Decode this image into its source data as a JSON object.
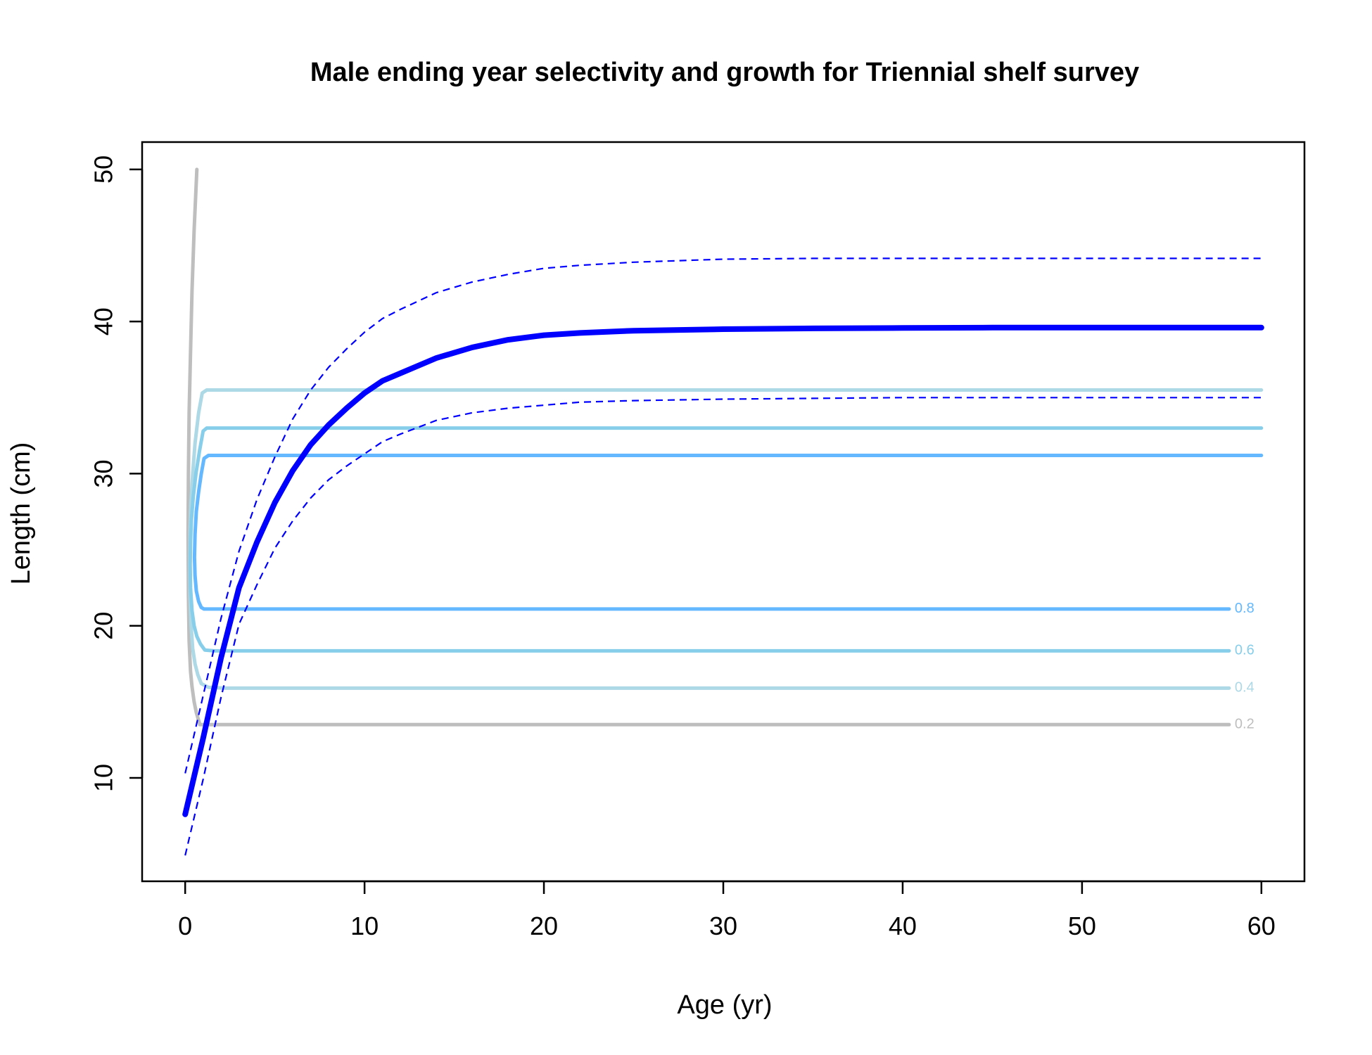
{
  "chart_data": {
    "type": "line",
    "title": "Male ending year selectivity and growth for Triennial shelf survey",
    "xlabel": "Age (yr)",
    "ylabel": "Length (cm)",
    "xlim": [
      -2.4,
      62.4
    ],
    "ylim": [
      3.2,
      51.8
    ],
    "xticks": [
      0,
      10,
      20,
      30,
      40,
      50,
      60
    ],
    "yticks": [
      10,
      20,
      30,
      40,
      50
    ],
    "grid": false,
    "growth": {
      "mean": {
        "color": "#0000ff",
        "x": [
          0,
          1,
          2,
          3,
          4,
          5,
          6,
          7,
          8,
          9,
          10,
          11,
          12,
          14,
          16,
          18,
          20,
          22,
          25,
          30,
          35,
          40,
          45,
          50,
          55,
          60
        ],
        "y": [
          7.6,
          12.6,
          17.9,
          22.5,
          25.5,
          28.1,
          30.2,
          31.9,
          33.2,
          34.3,
          35.3,
          36.1,
          36.6,
          37.6,
          38.3,
          38.8,
          39.1,
          39.25,
          39.4,
          39.5,
          39.55,
          39.58,
          39.6,
          39.6,
          39.6,
          39.6
        ]
      },
      "upper": {
        "color": "#0000ff",
        "x": [
          0,
          1,
          2,
          3,
          4,
          5,
          6,
          7,
          8,
          9,
          10,
          11,
          12,
          14,
          16,
          18,
          20,
          22,
          25,
          30,
          35,
          40,
          45,
          50,
          55,
          60
        ],
        "y": [
          10.3,
          15.4,
          20.5,
          24.9,
          28.3,
          31.1,
          33.6,
          35.5,
          37.0,
          38.2,
          39.3,
          40.2,
          40.8,
          41.9,
          42.6,
          43.1,
          43.5,
          43.7,
          43.9,
          44.1,
          44.15,
          44.15,
          44.15,
          44.15,
          44.15,
          44.15
        ]
      },
      "lower": {
        "color": "#0000ff",
        "x": [
          0,
          1,
          2,
          3,
          4,
          5,
          6,
          7,
          8,
          9,
          10,
          11,
          12,
          14,
          16,
          18,
          20,
          22,
          25,
          30,
          35,
          40,
          45,
          50,
          55,
          60
        ],
        "y": [
          4.9,
          9.9,
          15.3,
          20.1,
          22.7,
          25.1,
          26.9,
          28.4,
          29.6,
          30.5,
          31.3,
          32.1,
          32.6,
          33.5,
          34.0,
          34.3,
          34.5,
          34.7,
          34.8,
          34.9,
          34.95,
          35.0,
          35.0,
          35.0,
          35.0,
          35.0
        ]
      }
    },
    "selectivity_contours": [
      {
        "level": "0.2",
        "color": "#bebebe",
        "x": [
          0.65,
          0.5,
          0.38,
          0.3,
          0.22,
          0.18,
          0.16,
          0.18,
          0.22,
          0.3,
          0.38,
          0.5,
          0.62,
          0.72,
          0.82,
          1.2,
          1.8,
          10,
          20,
          30,
          40,
          50,
          58.2
        ],
        "y": [
          50,
          46,
          42,
          38,
          34,
          30,
          26,
          22,
          19,
          17,
          16,
          15,
          14.3,
          13.9,
          13.5,
          13.5,
          13.5,
          13.5,
          13.5,
          13.5,
          13.5,
          13.5,
          13.5
        ]
      },
      {
        "level": "0.4",
        "color": "#add8e6",
        "x": [
          60,
          50,
          40,
          30,
          20,
          10,
          2,
          1.2,
          0.95,
          0.75,
          0.55,
          0.42,
          0.32,
          0.27,
          0.25,
          0.27,
          0.33,
          0.42,
          0.55,
          0.7,
          0.9,
          1.3,
          2.2,
          10,
          20,
          30,
          40,
          50,
          58.2
        ],
        "y": [
          35.5,
          35.5,
          35.5,
          35.5,
          35.5,
          35.5,
          35.5,
          35.5,
          35.3,
          34,
          32,
          30,
          28,
          26,
          24,
          22,
          20,
          18.5,
          17.5,
          16.8,
          16.2,
          15.95,
          15.9,
          15.9,
          15.9,
          15.9,
          15.9,
          15.9,
          15.9
        ]
      },
      {
        "level": "0.6",
        "color": "#87ceeb",
        "x": [
          60,
          50,
          40,
          30,
          20,
          10,
          2,
          1.2,
          1.0,
          0.8,
          0.6,
          0.45,
          0.35,
          0.3,
          0.28,
          0.3,
          0.38,
          0.5,
          0.65,
          0.85,
          1.1,
          1.6,
          10,
          20,
          30,
          40,
          50,
          58.2
        ],
        "y": [
          33,
          33,
          33,
          33,
          33,
          33,
          33,
          33,
          32.8,
          31.5,
          30,
          28.5,
          27,
          25.5,
          24,
          22.5,
          21,
          20,
          19.3,
          18.8,
          18.4,
          18.35,
          18.35,
          18.35,
          18.35,
          18.35,
          18.35,
          18.35
        ]
      },
      {
        "level": "0.8",
        "color": "#63b8ff",
        "x": [
          60,
          50,
          40,
          30,
          20,
          10,
          2,
          1.3,
          1.05,
          0.9,
          0.75,
          0.62,
          0.55,
          0.52,
          0.55,
          0.62,
          0.75,
          0.9,
          1.05,
          1.4,
          10,
          20,
          30,
          40,
          50,
          58.2
        ],
        "y": [
          31.2,
          31.2,
          31.2,
          31.2,
          31.2,
          31.2,
          31.2,
          31.2,
          31.0,
          30,
          28.8,
          27.5,
          26,
          24.5,
          23.3,
          22.3,
          21.6,
          21.2,
          21.1,
          21.1,
          21.1,
          21.1,
          21.1,
          21.1,
          21.1,
          21.1
        ]
      }
    ]
  }
}
